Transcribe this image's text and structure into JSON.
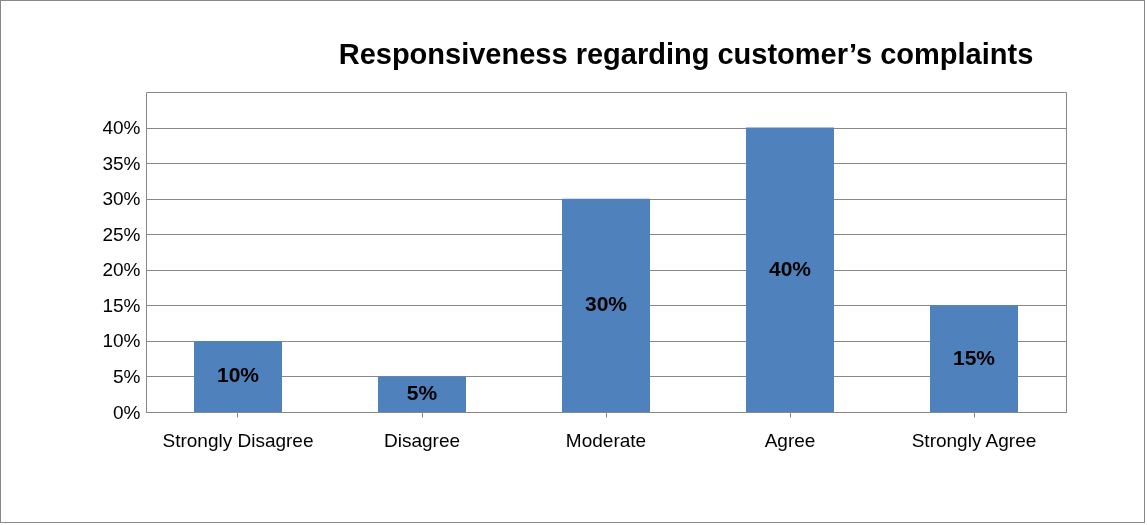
{
  "chart_data": {
    "type": "bar",
    "title": "Responsiveness regarding customer’s complaints",
    "categories": [
      "Strongly Disagree",
      "Disagree",
      "Moderate",
      "Agree",
      "Strongly Agree"
    ],
    "values": [
      10,
      5,
      30,
      40,
      15
    ],
    "value_labels": [
      "10%",
      "5%",
      "30%",
      "40%",
      "15%"
    ],
    "color": "#4f81bd",
    "ylim": [
      0,
      45
    ],
    "yticks": [
      {
        "value": 0,
        "label": "0%"
      },
      {
        "value": 5,
        "label": "5%"
      },
      {
        "value": 10,
        "label": "10%"
      },
      {
        "value": 15,
        "label": "15%"
      },
      {
        "value": 20,
        "label": "20%"
      },
      {
        "value": 25,
        "label": "25%"
      },
      {
        "value": 30,
        "label": "30%"
      },
      {
        "value": 35,
        "label": "35%"
      },
      {
        "value": 40,
        "label": "40%"
      }
    ],
    "grid": true
  }
}
